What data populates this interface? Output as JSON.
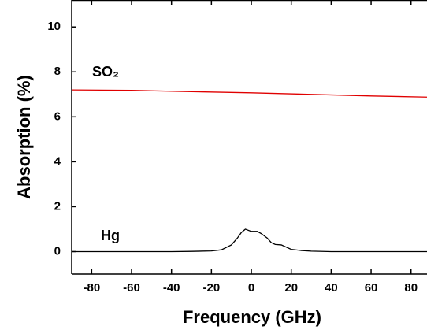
{
  "chart_data": {
    "type": "line",
    "xlabel": "Frequency (GHz)",
    "ylabel": "Absorption (%)",
    "xlim": [
      -90,
      88
    ],
    "ylim": [
      -1,
      11.2
    ],
    "xticks": [
      -80,
      -60,
      -40,
      -20,
      0,
      20,
      40,
      60,
      80
    ],
    "yticks": [
      0,
      2,
      4,
      6,
      8,
      10
    ],
    "annotations": [
      "SO₂",
      "Hg"
    ],
    "series": [
      {
        "name": "SO₂",
        "color": "#e00000",
        "x": [
          -90,
          -60,
          -30,
          0,
          30,
          60,
          88
        ],
        "values": [
          7.2,
          7.18,
          7.12,
          7.07,
          7.0,
          6.93,
          6.88
        ]
      },
      {
        "name": "Hg",
        "color": "#000000",
        "x": [
          -90,
          -40,
          -30,
          -20,
          -15,
          -10,
          -7,
          -5,
          -3,
          0,
          3,
          5,
          8,
          10,
          12,
          15,
          20,
          25,
          30,
          40,
          88
        ],
        "values": [
          0,
          0,
          0.01,
          0.03,
          0.08,
          0.3,
          0.6,
          0.85,
          1.0,
          0.9,
          0.9,
          0.8,
          0.6,
          0.4,
          0.32,
          0.3,
          0.1,
          0.05,
          0.02,
          0,
          0
        ]
      }
    ]
  }
}
